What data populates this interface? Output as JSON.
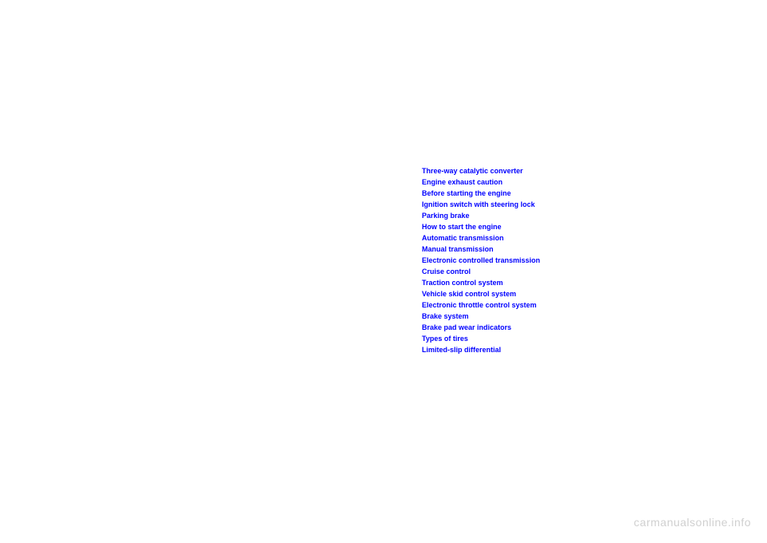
{
  "links": [
    "Three-way catalytic converter",
    "Engine exhaust caution",
    "Before starting the engine",
    "Ignition switch with steering lock",
    "Parking brake",
    "How to start the engine",
    "Automatic transmission",
    "Manual transmission",
    "Electronic controlled transmission",
    "Cruise control",
    "Traction control system",
    "Vehicle skid control system",
    "Electronic throttle control system",
    "Brake system",
    "Brake pad wear indicators",
    "Types of tires",
    "Limited-slip differential"
  ],
  "watermark": "carmanualsonline.info",
  "colors": {
    "link": "#0000ff",
    "background": "#ffffff",
    "watermark": "#d0d0d0"
  }
}
